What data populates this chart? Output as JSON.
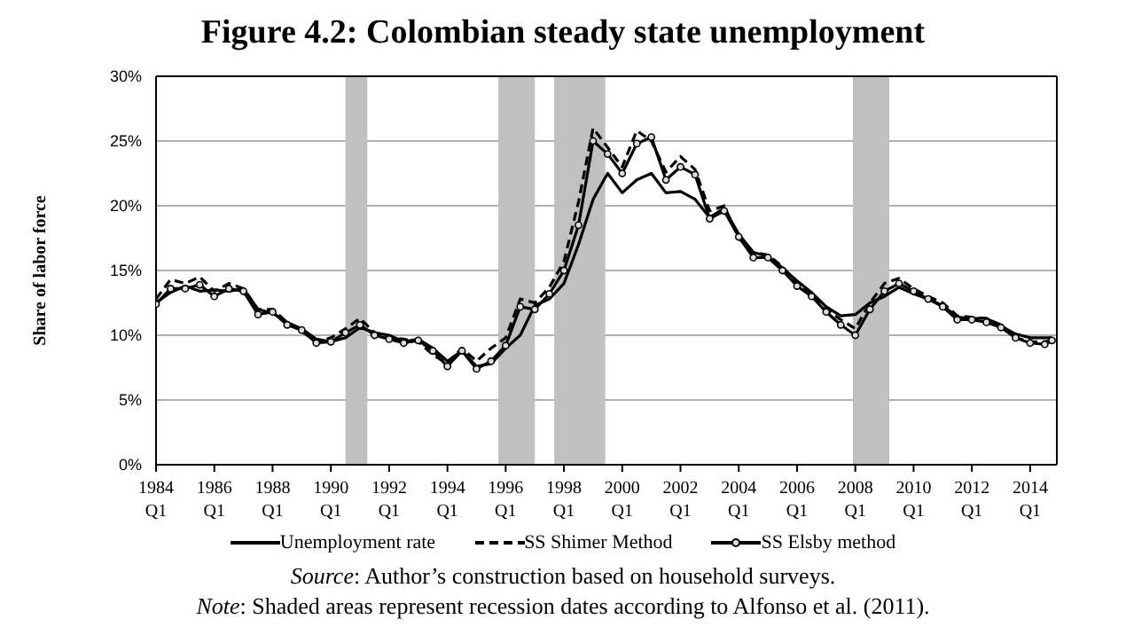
{
  "chart_data": {
    "type": "line",
    "title": "Figure 4.2: Colombian steady state unemployment",
    "ylabel": "Share of labor force",
    "x": [
      "1984-01",
      "1984-07",
      "1985-01",
      "1985-07",
      "1986-01",
      "1986-07",
      "1987-01",
      "1987-07",
      "1988-01",
      "1988-07",
      "1989-01",
      "1989-07",
      "1990-01",
      "1990-07",
      "1991-01",
      "1991-07",
      "1992-01",
      "1992-07",
      "1993-01",
      "1993-07",
      "1994-01",
      "1994-07",
      "1995-01",
      "1995-07",
      "1996-01",
      "1996-07",
      "1997-01",
      "1997-07",
      "1998-01",
      "1998-07",
      "1999-01",
      "1999-07",
      "2000-01",
      "2000-07",
      "2001-01",
      "2001-07",
      "2002-01",
      "2002-07",
      "2003-01",
      "2003-07",
      "2004-01",
      "2004-07",
      "2005-01",
      "2005-07",
      "2006-01",
      "2006-07",
      "2007-01",
      "2007-07",
      "2008-01",
      "2008-07",
      "2009-01",
      "2009-07",
      "2010-01",
      "2010-07",
      "2011-01",
      "2011-07",
      "2012-01",
      "2012-07",
      "2013-01",
      "2013-07",
      "2014-01",
      "2014-07",
      "2014-10"
    ],
    "series": [
      {
        "name": "Unemployment rate",
        "color": "#000000",
        "line_style": "solid",
        "marker": "none",
        "values": [
          12.5,
          13.3,
          13.8,
          13.4,
          13.5,
          13.4,
          13.6,
          12.0,
          11.7,
          11.0,
          10.5,
          9.7,
          9.5,
          9.8,
          10.6,
          10.2,
          10.0,
          9.5,
          9.7,
          9.0,
          8.0,
          8.8,
          7.6,
          7.8,
          9.0,
          10.0,
          12.3,
          12.8,
          14.0,
          17.0,
          20.5,
          22.5,
          21.0,
          22.0,
          22.5,
          21.0,
          21.1,
          20.5,
          19.1,
          19.8,
          17.8,
          16.4,
          16.1,
          15.2,
          14.2,
          13.3,
          12.2,
          11.5,
          11.6,
          12.5,
          13.0,
          13.7,
          13.2,
          12.8,
          12.3,
          11.4,
          11.3,
          11.3,
          10.7,
          10.1,
          9.8,
          9.8,
          9.8
        ]
      },
      {
        "name": "SS Shimer Method",
        "color": "#000000",
        "line_style": "dashed",
        "marker": "none",
        "values": [
          12.8,
          14.3,
          14.0,
          14.5,
          13.4,
          14.0,
          13.6,
          12.0,
          12.0,
          11.0,
          10.3,
          9.5,
          9.8,
          10.5,
          11.3,
          10.2,
          9.8,
          9.7,
          9.5,
          8.5,
          7.8,
          9.0,
          8.0,
          9.0,
          9.8,
          12.8,
          12.5,
          13.7,
          15.7,
          20.3,
          26.0,
          24.5,
          23.0,
          25.8,
          25.0,
          22.6,
          23.8,
          22.8,
          19.6,
          20.0,
          17.5,
          16.4,
          16.2,
          15.3,
          14.0,
          13.2,
          12.0,
          11.2,
          10.5,
          12.5,
          14.0,
          14.4,
          13.6,
          13.0,
          12.5,
          11.5,
          11.4,
          11.3,
          10.8,
          9.8,
          9.5,
          9.5,
          9.6
        ]
      },
      {
        "name": "SS Elsby method",
        "color": "#000000",
        "line_style": "solid",
        "marker": "circle",
        "values": [
          12.4,
          13.6,
          13.6,
          13.9,
          13.0,
          13.6,
          13.4,
          11.6,
          11.8,
          10.8,
          10.4,
          9.4,
          9.5,
          10.2,
          10.8,
          10.0,
          9.7,
          9.4,
          9.6,
          8.8,
          7.6,
          8.8,
          7.4,
          8.0,
          9.2,
          12.2,
          12.0,
          13.2,
          15.0,
          18.5,
          25.0,
          24.0,
          22.5,
          24.8,
          25.3,
          22.0,
          23.0,
          22.4,
          19.0,
          19.6,
          17.6,
          16.0,
          16.0,
          15.0,
          13.8,
          13.0,
          11.8,
          10.8,
          10.0,
          12.0,
          13.4,
          14.0,
          13.4,
          12.8,
          12.2,
          11.2,
          11.2,
          11.0,
          10.6,
          9.8,
          9.4,
          9.3,
          9.6
        ]
      }
    ],
    "xlim": [
      "1984-01",
      "2014-12"
    ],
    "xticks": [
      {
        "value": "1984-01",
        "label": "1984 Q1"
      },
      {
        "value": "1986-01",
        "label": "1986 Q1"
      },
      {
        "value": "1988-01",
        "label": "1988 Q1"
      },
      {
        "value": "1990-01",
        "label": "1990 Q1"
      },
      {
        "value": "1992-01",
        "label": "1992 Q1"
      },
      {
        "value": "1994-01",
        "label": "1994 Q1"
      },
      {
        "value": "1996-01",
        "label": "1996 Q1"
      },
      {
        "value": "1998-01",
        "label": "1998 Q1"
      },
      {
        "value": "2000-01",
        "label": "2000 Q1"
      },
      {
        "value": "2002-01",
        "label": "2002 Q1"
      },
      {
        "value": "2004-01",
        "label": "2004 Q1"
      },
      {
        "value": "2006-01",
        "label": "2006 Q1"
      },
      {
        "value": "2008-01",
        "label": "2008 Q1"
      },
      {
        "value": "2010-01",
        "label": "2010 Q1"
      },
      {
        "value": "2012-01",
        "label": "2012 Q1"
      },
      {
        "value": "2014-01",
        "label": "2014 Q1"
      }
    ],
    "ylim": [
      0,
      30
    ],
    "yticks": [
      {
        "value": 0,
        "label": "0%"
      },
      {
        "value": 5,
        "label": "5%"
      },
      {
        "value": 10,
        "label": "10%"
      },
      {
        "value": 15,
        "label": "15%"
      },
      {
        "value": 20,
        "label": "20%"
      },
      {
        "value": 25,
        "label": "25%"
      },
      {
        "value": 30,
        "label": "30%"
      }
    ],
    "bands": [
      {
        "axis": "x",
        "from": "1990-07",
        "to": "1991-04",
        "color": "#c0c0c0"
      },
      {
        "axis": "x",
        "from": "1995-10",
        "to": "1997-01",
        "color": "#c0c0c0"
      },
      {
        "axis": "x",
        "from": "1997-09",
        "to": "1999-06",
        "color": "#c0c0c0"
      },
      {
        "axis": "x",
        "from": "2007-12",
        "to": "2009-03",
        "color": "#c0c0c0"
      }
    ],
    "grid": "y",
    "legend": "bottom",
    "annotations": [
      "Source: Author’s construction based on household surveys.",
      "Note: Shaded areas represent recession dates according to Alfonso et al. (2011)."
    ]
  }
}
